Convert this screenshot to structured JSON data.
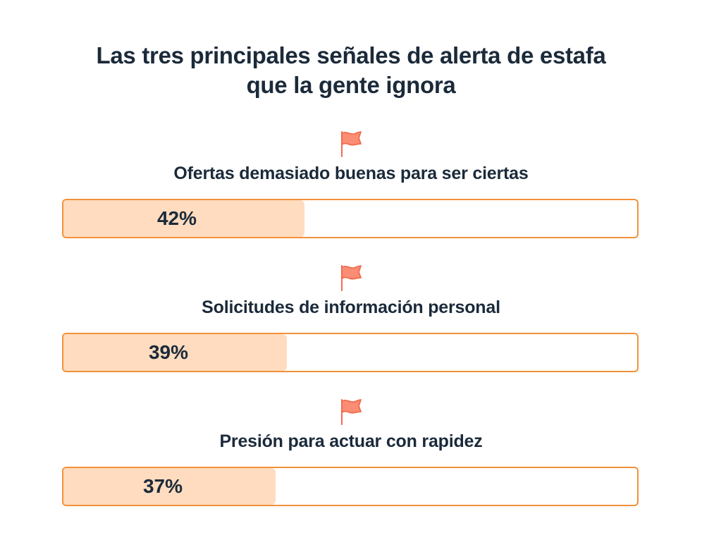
{
  "chart_data": {
    "type": "bar",
    "orientation": "horizontal",
    "title": "Las tres principales señales de alerta de estafa que la gente ignora",
    "title_lines": [
      "Las tres principales señales de alerta de estafa",
      "que la gente ignora"
    ],
    "categories": [
      "Ofertas demasiado buenas para ser ciertas",
      "Solicitudes de información personal",
      "Presión para actuar con rapidez"
    ],
    "values": [
      42,
      39,
      37
    ],
    "value_labels": [
      "42%",
      "39%",
      "37%"
    ],
    "unit": "%",
    "xlim": [
      0,
      100
    ],
    "grid": false,
    "legend": "none",
    "icon": "red-flag-icon",
    "colors": {
      "bar_fill": "#ffdcbf",
      "bar_border": "#f2913a",
      "flag": "#f26b4e",
      "text": "#1b2a3a"
    }
  }
}
